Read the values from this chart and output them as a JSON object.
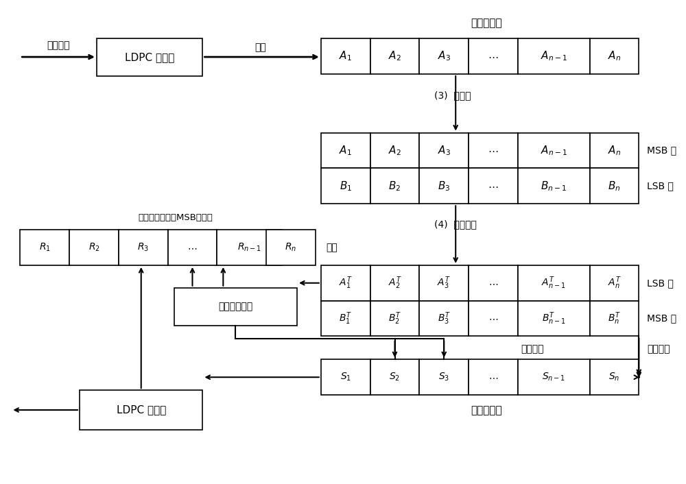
{
  "bg_color": "#ffffff",
  "figsize": [
    10.0,
    7.06
  ],
  "dpi": 100,
  "cell_color": "#ffffff",
  "edge_color": "#000000",
  "font_family": "SimHei",
  "top_register_label": "页面寄存器",
  "bit_seq_label": "比特序列",
  "transfer_label": "传输",
  "encoder_label": "LDPC 编码器",
  "write_op_label": "(3)  写操作",
  "save_err_label": "(4)  保存错误",
  "msb_label": "MSB 页",
  "lsb_label": "LSB 页",
  "first_read_label": "第一次读",
  "second_read_label": "第二次读",
  "bottom_register_label": "页面寄存器",
  "buffer_label": "缓存",
  "msb_soft_label": "译码结果对应的MSB软信息",
  "save_feature_label": "保存错误特征",
  "decoder_label": "LDPC 译码器",
  "A_cells": [
    "$A_1$",
    "$A_2$",
    "$A_3$",
    "$\\cdots$",
    "$A_{n-1}$",
    "$A_n$"
  ],
  "B_cells": [
    "$B_1$",
    "$B_2$",
    "$B_3$",
    "$\\cdots$",
    "$B_{n-1}$",
    "$B_n$"
  ],
  "AT_cells": [
    "$A_1^T$",
    "$A_2^T$",
    "$A_3^T$",
    "$\\cdots$",
    "$A_{n-1}^T$",
    "$A_n^T$"
  ],
  "BT_cells": [
    "$B_1^T$",
    "$B_2^T$",
    "$B_3^T$",
    "$\\cdots$",
    "$B_{n-1}^T$",
    "$B_n^T$"
  ],
  "S_cells": [
    "$S_1$",
    "$S_2$",
    "$S_3$",
    "$\\cdots$",
    "$S_{n-1}$",
    "$S_n$"
  ],
  "R_cells": [
    "$R_1$",
    "$R_2$",
    "$R_3$",
    "$\\cdots$",
    "$R_{n-1}$",
    "$R_n$"
  ]
}
